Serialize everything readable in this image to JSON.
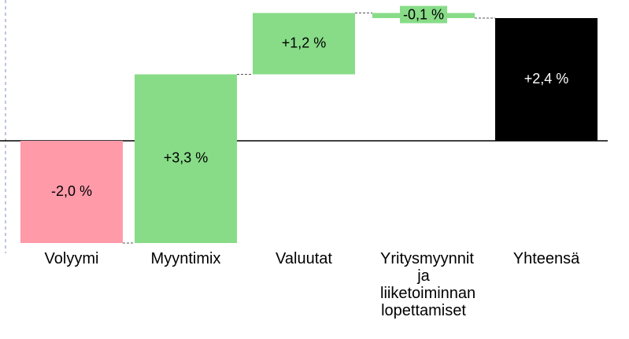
{
  "chart_data": {
    "type": "waterfall",
    "categories": [
      "Volyymi",
      "Myyntimix",
      "Valuutat",
      "Yritysmyynnit ja liiketoiminnan lopettamiset",
      "Yhteensä"
    ],
    "values": [
      -2.0,
      3.3,
      1.2,
      -0.1,
      2.4
    ],
    "value_labels": [
      "-2,0 %",
      "+3,3 %",
      "+1,2 %",
      "-0,1 %",
      "+2,4 %"
    ],
    "colors": [
      "#ff9aa9",
      "#88dc88",
      "#88dc88",
      "#88dc88",
      "#000000"
    ],
    "totals": [
      false,
      false,
      false,
      false,
      true
    ]
  }
}
